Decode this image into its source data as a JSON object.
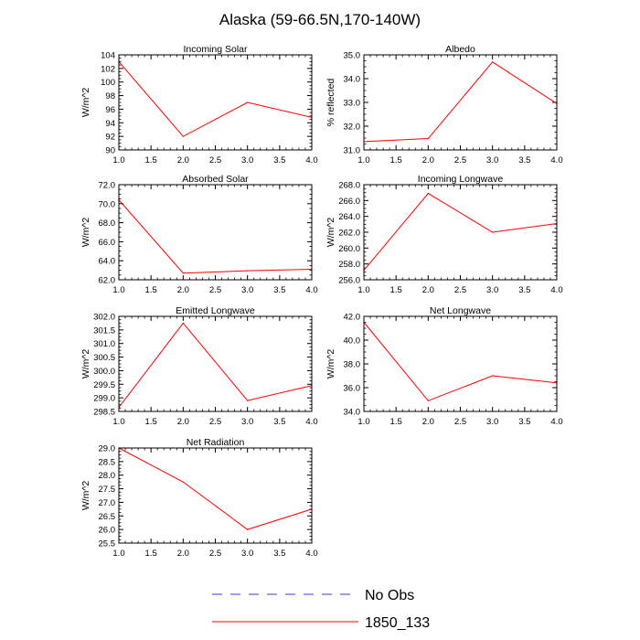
{
  "figure": {
    "title": "Alaska (59-66.5N,170-140W)",
    "legend": [
      {
        "label": "No Obs",
        "color": "#3b3bd1",
        "style": "dashed"
      },
      {
        "label": "1850_133",
        "color": "#ff0000",
        "style": "solid"
      }
    ]
  },
  "chart_data": [
    {
      "type": "line",
      "title": "Incoming Solar",
      "ylabel": "W/m^2",
      "xlabel": "",
      "x": [
        1.0,
        2.0,
        3.0,
        4.0
      ],
      "xlim": [
        1.0,
        4.0
      ],
      "xticks": [
        "1.0",
        "1.5",
        "2.0",
        "2.5",
        "3.0",
        "3.5",
        "4.0"
      ],
      "ylim": [
        90,
        104
      ],
      "yticks": [
        "90",
        "92",
        "94",
        "96",
        "98",
        "100",
        "102",
        "104"
      ],
      "series": [
        {
          "name": "1850_133",
          "color": "#ff0000",
          "values": [
            103.0,
            92.0,
            97.0,
            94.8
          ]
        }
      ]
    },
    {
      "type": "line",
      "title": "Albedo",
      "ylabel": "% reflected",
      "xlabel": "",
      "x": [
        1.0,
        2.0,
        3.0,
        4.0
      ],
      "xlim": [
        1.0,
        4.0
      ],
      "xticks": [
        "1.0",
        "1.5",
        "2.0",
        "2.5",
        "3.0",
        "3.5",
        "4.0"
      ],
      "ylim": [
        31.0,
        35.0
      ],
      "yticks": [
        "31.0",
        "32.0",
        "33.0",
        "34.0",
        "35.0"
      ],
      "series": [
        {
          "name": "1850_133",
          "color": "#ff0000",
          "values": [
            31.35,
            31.48,
            34.7,
            32.95
          ]
        }
      ]
    },
    {
      "type": "line",
      "title": "Absorbed Solar",
      "ylabel": "W/m^2",
      "xlabel": "",
      "x": [
        1.0,
        2.0,
        3.0,
        4.0
      ],
      "xlim": [
        1.0,
        4.0
      ],
      "xticks": [
        "1.0",
        "1.5",
        "2.0",
        "2.5",
        "3.0",
        "3.5",
        "4.0"
      ],
      "ylim": [
        62.0,
        72.0
      ],
      "yticks": [
        "62.0",
        "64.0",
        "66.0",
        "68.0",
        "70.0",
        "72.0"
      ],
      "series": [
        {
          "name": "1850_133",
          "color": "#ff0000",
          "values": [
            70.4,
            62.7,
            62.95,
            63.1
          ]
        }
      ]
    },
    {
      "type": "line",
      "title": "Incoming Longwave",
      "ylabel": "W/m^2",
      "xlabel": "",
      "x": [
        1.0,
        2.0,
        3.0,
        4.0
      ],
      "xlim": [
        1.0,
        4.0
      ],
      "xticks": [
        "1.0",
        "1.5",
        "2.0",
        "2.5",
        "3.0",
        "3.5",
        "4.0"
      ],
      "ylim": [
        256.0,
        268.0
      ],
      "yticks": [
        "256.0",
        "258.0",
        "260.0",
        "262.0",
        "264.0",
        "266.0",
        "268.0"
      ],
      "series": [
        {
          "name": "1850_133",
          "color": "#ff0000",
          "values": [
            257.2,
            266.9,
            262.0,
            263.1
          ]
        }
      ]
    },
    {
      "type": "line",
      "title": "Emitted Longwave",
      "ylabel": "W/m^2",
      "xlabel": "",
      "x": [
        1.0,
        2.0,
        3.0,
        4.0
      ],
      "xlim": [
        1.0,
        4.0
      ],
      "xticks": [
        "1.0",
        "1.5",
        "2.0",
        "2.5",
        "3.0",
        "3.5",
        "4.0"
      ],
      "ylim": [
        298.5,
        302.0
      ],
      "yticks": [
        "298.5",
        "299.0",
        "299.5",
        "300.0",
        "300.5",
        "301.0",
        "301.5",
        "302.0"
      ],
      "series": [
        {
          "name": "1850_133",
          "color": "#ff0000",
          "values": [
            298.65,
            301.75,
            298.9,
            299.45
          ]
        }
      ]
    },
    {
      "type": "line",
      "title": "Net Longwave",
      "ylabel": "W/m^2",
      "xlabel": "",
      "x": [
        1.0,
        2.0,
        3.0,
        4.0
      ],
      "xlim": [
        1.0,
        4.0
      ],
      "xticks": [
        "1.0",
        "1.5",
        "2.0",
        "2.5",
        "3.0",
        "3.5",
        "4.0"
      ],
      "ylim": [
        34.0,
        42.0
      ],
      "yticks": [
        "34.0",
        "36.0",
        "38.0",
        "40.0",
        "42.0"
      ],
      "series": [
        {
          "name": "1850_133",
          "color": "#ff0000",
          "values": [
            41.5,
            34.9,
            37.0,
            36.4
          ]
        }
      ]
    },
    {
      "type": "line",
      "title": "Net Radiation",
      "ylabel": "W/m^2",
      "xlabel": "",
      "x": [
        1.0,
        2.0,
        3.0,
        4.0
      ],
      "xlim": [
        1.0,
        4.0
      ],
      "xticks": [
        "1.0",
        "1.5",
        "2.0",
        "2.5",
        "3.0",
        "3.5",
        "4.0"
      ],
      "ylim": [
        25.5,
        29.0
      ],
      "yticks": [
        "25.5",
        "26.0",
        "26.5",
        "27.0",
        "27.5",
        "28.0",
        "28.5",
        "29.0"
      ],
      "series": [
        {
          "name": "1850_133",
          "color": "#ff0000",
          "values": [
            29.0,
            27.75,
            26.0,
            26.75
          ]
        }
      ]
    }
  ]
}
